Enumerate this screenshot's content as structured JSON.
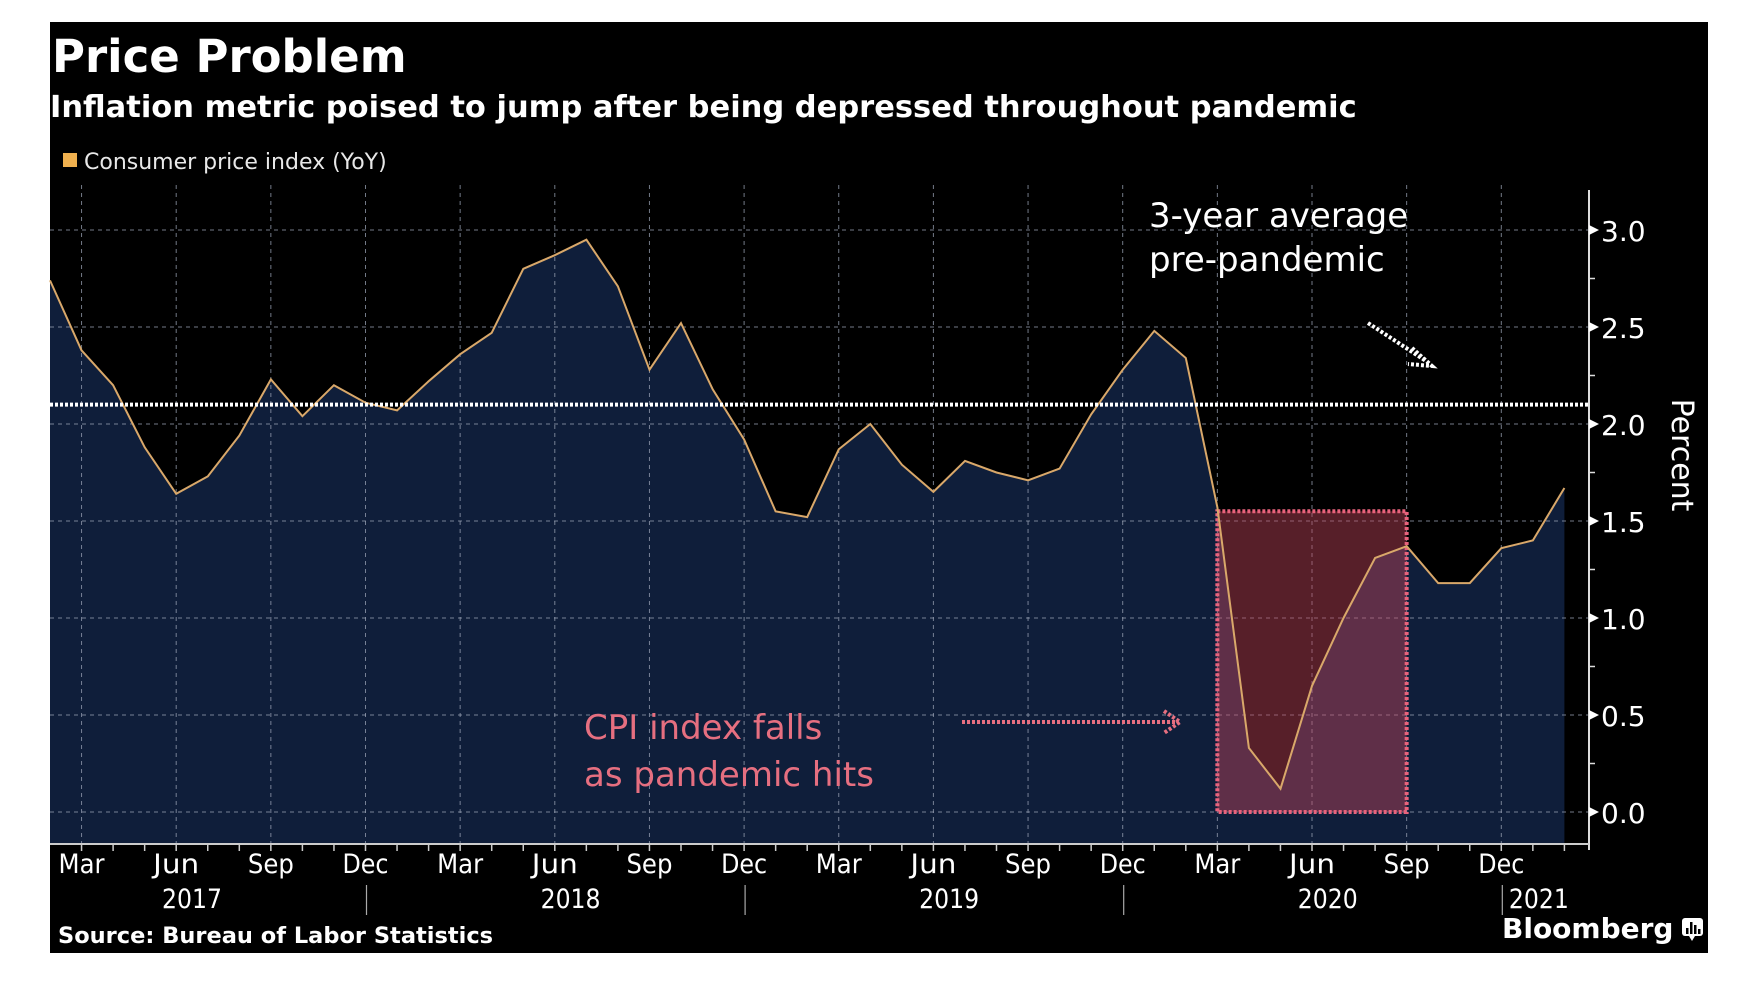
{
  "header": {
    "title": "Price Problem",
    "subtitle": "Inflation metric poised to jump after being depressed throughout pandemic"
  },
  "footer": {
    "source": "Source: Bureau of Labor Statistics",
    "brand": "Bloomberg",
    "brand_icon": "bloomberg-chart-bubble-icon"
  },
  "colors": {
    "background": "#000000",
    "area_fill": "#0f1e3a",
    "line": "#d9a86a",
    "legend_swatch": "#f0b14f",
    "highlight_fill": "#c0455a",
    "highlight_border": "#e8637c",
    "annotation_pink": "#e66f80",
    "annotation_white": "#ffffff",
    "grid": "#9aa3b5"
  },
  "chart_data": {
    "type": "area",
    "title": "Price Problem",
    "subtitle": "Inflation metric poised to jump after being depressed throughout pandemic",
    "xlabel": "",
    "ylabel": "Percent",
    "ylim": [
      0,
      3.2
    ],
    "yticks": [
      0.0,
      0.5,
      1.0,
      1.5,
      2.0,
      2.5,
      3.0
    ],
    "ytick_labels": [
      "0.0",
      "0.5",
      "1.0",
      "1.5",
      "2.0",
      "2.5",
      "3.0"
    ],
    "grid": true,
    "legend": {
      "position": "top-left",
      "entries": [
        "Consumer price index (YoY)"
      ]
    },
    "x_start": "2017-02",
    "x_end": "2021-02",
    "month_tick_labels": [
      {
        "month": "2017-03",
        "label": "Mar"
      },
      {
        "month": "2017-06",
        "label": "Jun"
      },
      {
        "month": "2017-09",
        "label": "Sep"
      },
      {
        "month": "2017-12",
        "label": "Dec"
      },
      {
        "month": "2018-03",
        "label": "Mar"
      },
      {
        "month": "2018-06",
        "label": "Jun"
      },
      {
        "month": "2018-09",
        "label": "Sep"
      },
      {
        "month": "2018-12",
        "label": "Dec"
      },
      {
        "month": "2019-03",
        "label": "Mar"
      },
      {
        "month": "2019-06",
        "label": "Jun"
      },
      {
        "month": "2019-09",
        "label": "Sep"
      },
      {
        "month": "2019-12",
        "label": "Dec"
      },
      {
        "month": "2020-03",
        "label": "Mar"
      },
      {
        "month": "2020-06",
        "label": "Jun"
      },
      {
        "month": "2020-09",
        "label": "Sep"
      },
      {
        "month": "2020-12",
        "label": "Dec"
      }
    ],
    "year_labels": [
      {
        "label": "2017",
        "center_month": "2017-06"
      },
      {
        "label": "2018",
        "center_month": "2018-06"
      },
      {
        "label": "2019",
        "center_month": "2019-06"
      },
      {
        "label": "2020",
        "center_month": "2020-06"
      },
      {
        "label": "2021",
        "center_month": "2021-01"
      }
    ],
    "year_separators": [
      "2017-12",
      "2018-12",
      "2019-12",
      "2020-12"
    ],
    "series": [
      {
        "name": "Consumer price index (YoY)",
        "x": [
          "2017-02",
          "2017-03",
          "2017-04",
          "2017-05",
          "2017-06",
          "2017-07",
          "2017-08",
          "2017-09",
          "2017-10",
          "2017-11",
          "2017-12",
          "2018-01",
          "2018-02",
          "2018-03",
          "2018-04",
          "2018-05",
          "2018-06",
          "2018-07",
          "2018-08",
          "2018-09",
          "2018-10",
          "2018-11",
          "2018-12",
          "2019-01",
          "2019-02",
          "2019-03",
          "2019-04",
          "2019-05",
          "2019-06",
          "2019-07",
          "2019-08",
          "2019-09",
          "2019-10",
          "2019-11",
          "2019-12",
          "2020-01",
          "2020-02",
          "2020-03",
          "2020-04",
          "2020-05",
          "2020-06",
          "2020-07",
          "2020-08",
          "2020-09",
          "2020-10",
          "2020-11",
          "2020-12",
          "2021-01",
          "2021-02"
        ],
        "values": [
          2.74,
          2.38,
          2.2,
          1.88,
          1.64,
          1.73,
          1.94,
          2.23,
          2.04,
          2.2,
          2.11,
          2.07,
          2.22,
          2.36,
          2.47,
          2.8,
          2.87,
          2.95,
          2.71,
          2.28,
          2.52,
          2.18,
          1.92,
          1.55,
          1.52,
          1.87,
          2.0,
          1.79,
          1.65,
          1.81,
          1.75,
          1.71,
          1.77,
          2.05,
          2.28,
          2.48,
          2.34,
          1.57,
          0.33,
          0.12,
          0.65,
          1.0,
          1.31,
          1.37,
          1.18,
          1.18,
          1.36,
          1.4,
          1.67
        ]
      }
    ],
    "reference_line": {
      "label": "3-year average pre-pandemic",
      "value": 2.1
    },
    "highlight_region": {
      "x_from": "2020-03",
      "x_to": "2020-09",
      "y_from": 0.0,
      "y_to": 1.55
    },
    "annotations": [
      {
        "id": "avg",
        "lines": [
          "3-year average",
          "pre-pandemic"
        ],
        "arrow_target": "reference_line"
      },
      {
        "id": "pandemic",
        "lines": [
          "CPI index falls",
          "as pandemic hits"
        ],
        "arrow_target": "highlight_region"
      }
    ]
  }
}
